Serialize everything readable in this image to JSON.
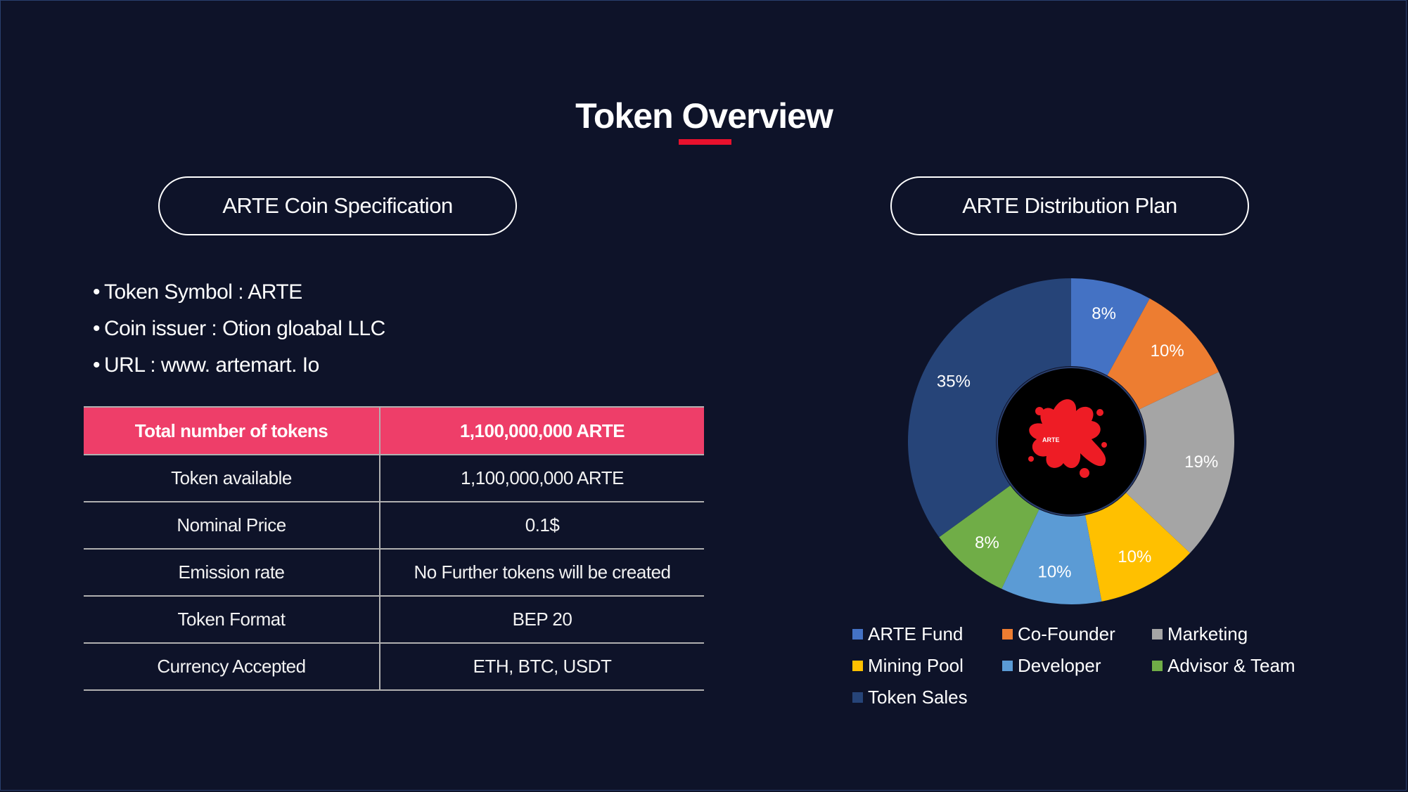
{
  "title": "Token Overview",
  "spec_pill": "ARTE Coin Specification",
  "plan_pill": "ARTE Distribution Plan",
  "bullets": [
    "Token Symbol : ARTE",
    "Coin issuer : Otion gloabal  LLC",
    "URL : www. artemart. Io"
  ],
  "table": {
    "header": [
      "Total number of tokens",
      "1,100,000,000 ARTE"
    ],
    "rows": [
      [
        "Token available",
        "1,100,000,000 ARTE"
      ],
      [
        "Nominal Price",
        "0.1$"
      ],
      [
        "Emission rate",
        "No Further tokens will be created"
      ],
      [
        "Token Format",
        "BEP 20"
      ],
      [
        "Currency Accepted",
        "ETH, BTC, USDT"
      ]
    ]
  },
  "center_logo_text": "ARTE",
  "chart_data": {
    "type": "pie",
    "subtype": "doughnut",
    "title": "ARTE Distribution Plan",
    "categories": [
      "ARTE Fund",
      "Co-Founder",
      "Marketing",
      "Mining Pool",
      "Developer",
      "Advisor & Team",
      "Token Sales"
    ],
    "values": [
      8,
      10,
      19,
      10,
      10,
      8,
      35
    ],
    "labels": [
      "8%",
      "10%",
      "19%",
      "10%",
      "10%",
      "8%",
      "35%"
    ],
    "colors": [
      "#4472c4",
      "#ed7d31",
      "#a5a5a5",
      "#ffc000",
      "#5b9bd5",
      "#70ad47",
      "#264478"
    ],
    "legend_position": "bottom"
  }
}
